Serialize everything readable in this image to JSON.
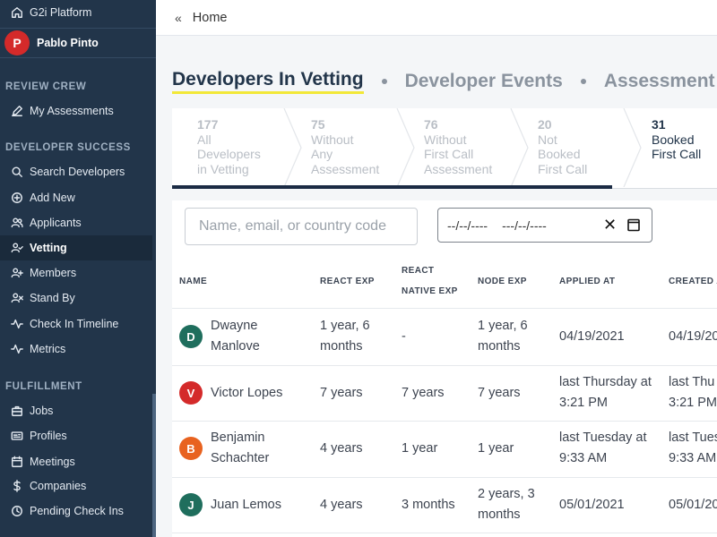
{
  "sidebar": {
    "platform": "G2i Platform",
    "user": {
      "initial": "P",
      "name": "Pablo Pinto",
      "color": "#d42a2a"
    },
    "sections": [
      {
        "title": "REVIEW CREW",
        "items": [
          {
            "label": "My Assessments",
            "icon": "pencil-icon"
          }
        ]
      },
      {
        "title": "DEVELOPER SUCCESS",
        "items": [
          {
            "label": "Search Developers",
            "icon": "search-icon"
          },
          {
            "label": "Add New",
            "icon": "plus-circle-icon"
          },
          {
            "label": "Applicants",
            "icon": "users-icon"
          },
          {
            "label": "Vetting",
            "icon": "user-check-icon",
            "active": true
          },
          {
            "label": "Members",
            "icon": "user-plus-icon"
          },
          {
            "label": "Stand By",
            "icon": "user-x-icon"
          },
          {
            "label": "Check In Timeline",
            "icon": "activity-icon"
          },
          {
            "label": "Metrics",
            "icon": "activity-icon"
          }
        ]
      },
      {
        "title": "FULFILLMENT",
        "items": [
          {
            "label": "Jobs",
            "icon": "briefcase-icon"
          },
          {
            "label": "Profiles",
            "icon": "id-card-icon"
          },
          {
            "label": "Meetings",
            "icon": "calendar-icon"
          },
          {
            "label": "Companies",
            "icon": "dollar-icon"
          },
          {
            "label": "Pending Check Ins",
            "icon": "clock-icon"
          }
        ]
      }
    ]
  },
  "topbar": {
    "collapse": "«",
    "breadcrumb": "Home"
  },
  "tabs": [
    {
      "label": "Developers In Vetting",
      "active": true
    },
    {
      "label": "Developer Events"
    },
    {
      "label": "Assessment E"
    }
  ],
  "steps": [
    {
      "count": "177",
      "lines": [
        "All",
        "Developers",
        "in Vetting"
      ]
    },
    {
      "count": "75",
      "lines": [
        "Without",
        "Any",
        "Assessment"
      ]
    },
    {
      "count": "76",
      "lines": [
        "Without",
        "First Call",
        "Assessment"
      ]
    },
    {
      "count": "20",
      "lines": [
        "Not",
        "Booked",
        "First Call"
      ]
    },
    {
      "count": "31",
      "lines": [
        "Booked",
        "First Call"
      ],
      "current": true
    }
  ],
  "filters": {
    "search_placeholder": "Name, email, or country code",
    "date_from": "--/--/----",
    "date_to": "---/--/----",
    "clear": "✕"
  },
  "table": {
    "headers": {
      "name": "NAME",
      "react": "REACT EXP",
      "rn_line1": "REACT",
      "rn_line2": "NATIVE EXP",
      "node": "NODE EXP",
      "applied": "APPLIED AT",
      "created": "CREATED A"
    },
    "rows": [
      {
        "initial": "D",
        "color": "#1f6e5d",
        "name": [
          "Dwayne",
          "Manlove"
        ],
        "react": [
          "1 year, 6",
          "months"
        ],
        "rn": [
          "-"
        ],
        "node": [
          "1 year, 6",
          "months"
        ],
        "applied": [
          "04/19/2021"
        ],
        "created": [
          "04/19/20"
        ]
      },
      {
        "initial": "V",
        "color": "#d42a2a",
        "name": [
          "Victor Lopes"
        ],
        "react": [
          "7 years"
        ],
        "rn": [
          "7 years"
        ],
        "node": [
          "7 years"
        ],
        "applied": [
          "last Thursday at",
          "3:21 PM"
        ],
        "created": [
          "last Thu",
          "3:21 PM"
        ]
      },
      {
        "initial": "B",
        "color": "#e8621f",
        "name": [
          "Benjamin",
          "Schachter"
        ],
        "react": [
          "4 years"
        ],
        "rn": [
          "1 year"
        ],
        "node": [
          "1 year"
        ],
        "applied": [
          "last Tuesday at",
          "9:33 AM"
        ],
        "created": [
          "last Tues",
          "9:33 AM"
        ]
      },
      {
        "initial": "J",
        "color": "#1f6e5d",
        "name": [
          "Juan Lemos"
        ],
        "react": [
          "4 years"
        ],
        "rn": [
          "3 months"
        ],
        "node": [
          "2 years, 3",
          "months"
        ],
        "applied": [
          "05/01/2021"
        ],
        "created": [
          "05/01/20"
        ]
      }
    ]
  }
}
